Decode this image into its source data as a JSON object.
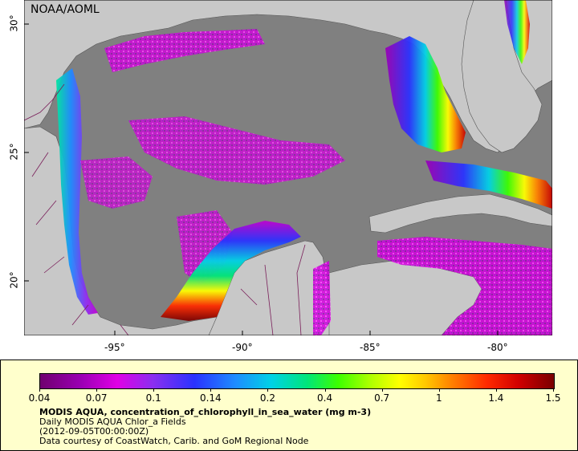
{
  "map": {
    "credit": "NOAA/AOML",
    "lon_ticks": [
      "-95°",
      "-90°",
      "-85°",
      "-80°"
    ],
    "lat_ticks": [
      "30°",
      "25°",
      "20°"
    ],
    "colors": {
      "land": "#c8c8c8",
      "no_data": "#808080",
      "coast_stroke": "#555555",
      "border_stroke": "#7a1f5a"
    }
  },
  "legend": {
    "scale_labels": [
      "0.04",
      "0.07",
      "0.1",
      "0.14",
      "0.2",
      "0.4",
      "0.7",
      "1",
      "1.4",
      "1.5"
    ],
    "title": "MODIS AQUA, concentration_of_chlorophyll_in_sea_water (mg m-3)",
    "line2": "Daily MODIS AQUA Chlor_a Fields",
    "line3": "(2012-09-05T00:00:00Z)",
    "line4": "Data courtesy of CoastWatch, Carib. and GoM Regional Node"
  }
}
